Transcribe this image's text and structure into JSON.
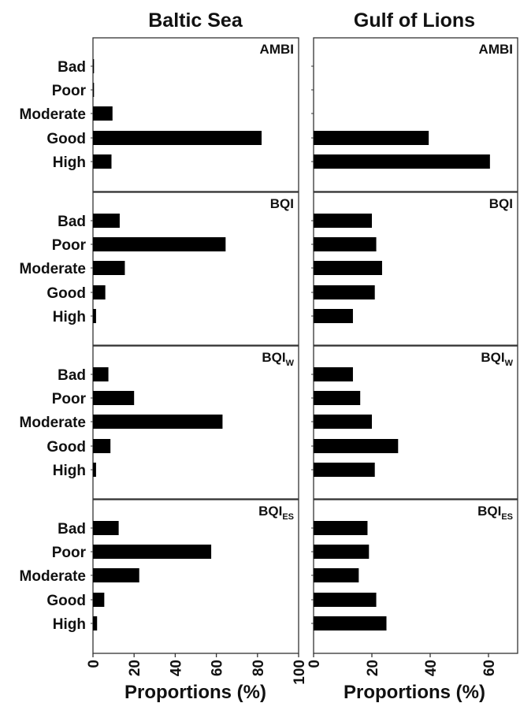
{
  "column_titles": [
    "Baltic Sea",
    "Gulf of Lions"
  ],
  "x_axis_label": "Proportions (%)",
  "colors": {
    "bar": "#000000",
    "frame": "#333333",
    "text": "#111111"
  },
  "chart_data": [
    {
      "type": "bar",
      "orientation": "horizontal",
      "region": "Baltic Sea",
      "index": "AMBI",
      "index_subscript": "",
      "categories": [
        "Bad",
        "Poor",
        "Moderate",
        "Good",
        "High"
      ],
      "values": [
        0.5,
        0.5,
        9.5,
        82,
        9
      ],
      "xlim": [
        0,
        100
      ],
      "xticks": [
        0,
        20,
        40,
        60,
        80,
        100
      ]
    },
    {
      "type": "bar",
      "orientation": "horizontal",
      "region": "Gulf of Lions",
      "index": "AMBI",
      "index_subscript": "",
      "categories": [
        "Bad",
        "Poor",
        "Moderate",
        "Good",
        "High"
      ],
      "values": [
        0,
        0,
        0,
        39.5,
        60.5
      ],
      "xlim": [
        0,
        70
      ],
      "xticks": [
        0,
        20,
        40,
        60
      ]
    },
    {
      "type": "bar",
      "orientation": "horizontal",
      "region": "Baltic Sea",
      "index": "BQI",
      "index_subscript": "",
      "categories": [
        "Bad",
        "Poor",
        "Moderate",
        "Good",
        "High"
      ],
      "values": [
        13,
        64.5,
        15.5,
        6,
        1.5
      ],
      "xlim": [
        0,
        100
      ],
      "xticks": [
        0,
        20,
        40,
        60,
        80,
        100
      ]
    },
    {
      "type": "bar",
      "orientation": "horizontal",
      "region": "Gulf of Lions",
      "index": "BQI",
      "index_subscript": "",
      "categories": [
        "Bad",
        "Poor",
        "Moderate",
        "Good",
        "High"
      ],
      "values": [
        20,
        21.5,
        23.5,
        21,
        13.5
      ],
      "xlim": [
        0,
        70
      ],
      "xticks": [
        0,
        20,
        40,
        60
      ]
    },
    {
      "type": "bar",
      "orientation": "horizontal",
      "region": "Baltic Sea",
      "index": "BQI",
      "index_subscript": "W",
      "categories": [
        "Bad",
        "Poor",
        "Moderate",
        "Good",
        "High"
      ],
      "values": [
        7.5,
        20,
        63,
        8.5,
        1.5
      ],
      "xlim": [
        0,
        100
      ],
      "xticks": [
        0,
        20,
        40,
        60,
        80,
        100
      ]
    },
    {
      "type": "bar",
      "orientation": "horizontal",
      "region": "Gulf of Lions",
      "index": "BQI",
      "index_subscript": "W",
      "categories": [
        "Bad",
        "Poor",
        "Moderate",
        "Good",
        "High"
      ],
      "values": [
        13.5,
        16,
        20,
        29,
        21
      ],
      "xlim": [
        0,
        70
      ],
      "xticks": [
        0,
        20,
        40,
        60
      ]
    },
    {
      "type": "bar",
      "orientation": "horizontal",
      "region": "Baltic Sea",
      "index": "BQI",
      "index_subscript": "ES",
      "categories": [
        "Bad",
        "Poor",
        "Moderate",
        "Good",
        "High"
      ],
      "values": [
        12.5,
        57.5,
        22.5,
        5.5,
        2
      ],
      "xlim": [
        0,
        100
      ],
      "xticks": [
        0,
        20,
        40,
        60,
        80,
        100
      ]
    },
    {
      "type": "bar",
      "orientation": "horizontal",
      "region": "Gulf of Lions",
      "index": "BQI",
      "index_subscript": "ES",
      "categories": [
        "Bad",
        "Poor",
        "Moderate",
        "Good",
        "High"
      ],
      "values": [
        18.5,
        19,
        15.5,
        21.5,
        25
      ],
      "xlim": [
        0,
        70
      ],
      "xticks": [
        0,
        20,
        40,
        60
      ]
    }
  ]
}
